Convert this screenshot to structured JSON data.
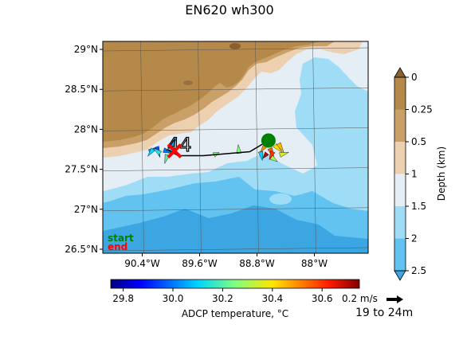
{
  "title": "EN620 wh300",
  "time_range": "19 to 24m",
  "legend": {
    "start": "start",
    "end": "end",
    "start_color": "#008000",
    "end_color": "#ff0000"
  },
  "chart_data": {
    "type": "map-vector-plot",
    "map": {
      "lon_range": [
        -90.95,
        -87.25
      ],
      "lat_range": [
        26.45,
        29.1
      ],
      "lon_ticks": [
        -90.4,
        -89.6,
        -88.8,
        -88.0
      ],
      "lon_tick_labels": [
        "90.4°W",
        "89.6°W",
        "88.8°W",
        "88°W"
      ],
      "lat_ticks": [
        29.0,
        28.5,
        28.0,
        27.5,
        27.0,
        26.5
      ],
      "lat_tick_labels": [
        "29°N",
        "28.5°N",
        "28°N",
        "27.5°N",
        "27°N",
        "26.5°N"
      ],
      "grid": true
    },
    "depth_colorbar": {
      "label": "Depth (km)",
      "levels": [
        0,
        0.25,
        0.5,
        1,
        1.5,
        2,
        2.5
      ],
      "tick_labels": [
        "0",
        "0.25",
        "0.5",
        "1",
        "1.5",
        "2",
        "2.5"
      ],
      "colors": [
        "#b5894a",
        "#c9a068",
        "#ecd0b0",
        "#e4eef4",
        "#9fddf7",
        "#62c3f0"
      ],
      "extend_min_color": "#8a6030",
      "extend_max_color": "#3ba6e2"
    },
    "temperature_colorbar": {
      "label": "ADCP temperature, °C",
      "range": [
        29.75,
        30.75
      ],
      "ticks": [
        29.8,
        30.0,
        30.2,
        30.4,
        30.6
      ],
      "tick_labels": [
        "29.8",
        "30.0",
        "30.2",
        "30.4",
        "30.6"
      ]
    },
    "scale_arrow": {
      "label": "0.2 m/s",
      "speed_mps": 0.2
    },
    "track": [
      {
        "lon": -88.64,
        "lat": 27.86
      },
      {
        "lon": -88.9,
        "lat": 27.72
      },
      {
        "lon": -89.55,
        "lat": 27.67
      },
      {
        "lon": -89.9,
        "lat": 27.67
      },
      {
        "lon": -90.05,
        "lat": 27.75
      }
    ],
    "start_point": {
      "lon": -88.64,
      "lat": 27.86
    },
    "end_point": {
      "lon": -89.95,
      "lat": 27.73
    },
    "vectors": [
      {
        "lon": -90.3,
        "lat": 27.72,
        "u": 0.1,
        "v": 0.05,
        "temp": 30.05
      },
      {
        "lon": -90.25,
        "lat": 27.75,
        "u": -0.06,
        "v": -0.08,
        "temp": 30.1
      },
      {
        "lon": -90.2,
        "lat": 27.78,
        "u": 0.04,
        "v": -0.12,
        "temp": 29.95
      },
      {
        "lon": -90.15,
        "lat": 27.7,
        "u": -0.08,
        "v": 0.06,
        "temp": 30.15
      },
      {
        "lon": -90.1,
        "lat": 27.74,
        "u": 0.12,
        "v": -0.04,
        "temp": 30.0
      },
      {
        "lon": -90.05,
        "lat": 27.68,
        "u": -0.03,
        "v": -0.1,
        "temp": 30.2
      },
      {
        "lon": -90.0,
        "lat": 27.8,
        "u": 0.07,
        "v": 0.09,
        "temp": 30.05
      },
      {
        "lon": -89.95,
        "lat": 27.72,
        "u": -0.1,
        "v": 0.02,
        "temp": 30.1
      },
      {
        "lon": -89.4,
        "lat": 27.68,
        "u": 0.06,
        "v": 0.03,
        "temp": 30.25
      },
      {
        "lon": -89.05,
        "lat": 27.7,
        "u": -0.01,
        "v": 0.1,
        "temp": 30.25
      },
      {
        "lon": -88.75,
        "lat": 27.72,
        "u": 0.02,
        "v": -0.1,
        "temp": 30.1
      },
      {
        "lon": -88.68,
        "lat": 27.8,
        "u": -0.06,
        "v": -0.08,
        "temp": 30.5
      },
      {
        "lon": -88.62,
        "lat": 27.76,
        "u": 0.05,
        "v": -0.12,
        "temp": 30.55
      },
      {
        "lon": -88.58,
        "lat": 27.72,
        "u": -0.04,
        "v": -0.09,
        "temp": 30.6
      },
      {
        "lon": -88.55,
        "lat": 27.8,
        "u": 0.08,
        "v": -0.08,
        "temp": 30.4
      },
      {
        "lon": -88.5,
        "lat": 27.82,
        "u": 0.06,
        "v": -0.1,
        "temp": 30.45
      },
      {
        "lon": -88.48,
        "lat": 27.68,
        "u": 0.1,
        "v": 0.03,
        "temp": 30.35
      },
      {
        "lon": -88.6,
        "lat": 27.65,
        "u": 0.07,
        "v": -0.05,
        "temp": 30.3
      },
      {
        "lon": -88.66,
        "lat": 27.7,
        "u": -0.05,
        "v": -0.06,
        "temp": 30.7
      }
    ]
  }
}
